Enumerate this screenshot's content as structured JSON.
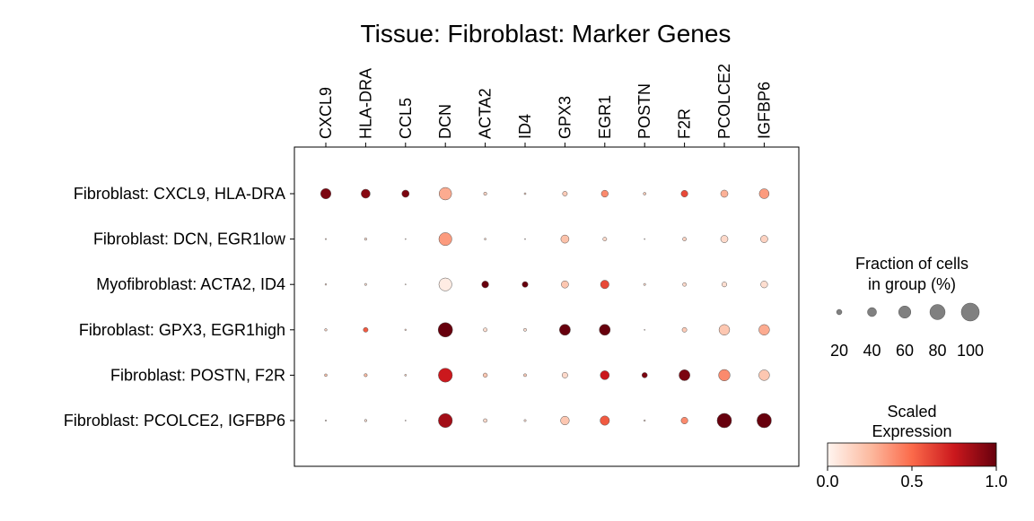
{
  "chart_data": {
    "type": "dotplot",
    "title": "Tissue: Fibroblast: Marker Genes",
    "genes": [
      "CXCL9",
      "HLA-DRA",
      "CCL5",
      "DCN",
      "ACTA2",
      "ID4",
      "GPX3",
      "EGR1",
      "POSTN",
      "F2R",
      "PCOLCE2",
      "IGFBP6"
    ],
    "groups": [
      "Fibroblast: CXCL9, HLA-DRA",
      "Fibroblast: DCN, EGR1low",
      "Myofibroblast: ACTA2, ID4",
      "Fibroblast: GPX3, EGR1high",
      "Fibroblast: POSTN, F2R",
      "Fibroblast: PCOLCE2, IGFBP6"
    ],
    "fraction_pct": [
      [
        48,
        40,
        30,
        62,
        10,
        5,
        17,
        28,
        8,
        27,
        30,
        45
      ],
      [
        3,
        7,
        1,
        65,
        5,
        2,
        35,
        13,
        2,
        12,
        30,
        30
      ],
      [
        4,
        6,
        2,
        65,
        28,
        22,
        30,
        37,
        6,
        12,
        18,
        28
      ],
      [
        7,
        17,
        4,
        75,
        13,
        9,
        52,
        52,
        2,
        17,
        50,
        50
      ],
      [
        8,
        10,
        5,
        72,
        15,
        9,
        22,
        40,
        20,
        52,
        55,
        50
      ],
      [
        3,
        7,
        2,
        72,
        12,
        6,
        38,
        42,
        4,
        27,
        75,
        75
      ]
    ],
    "scaled_expression": [
      [
        0.95,
        0.92,
        0.95,
        0.3,
        0.15,
        0.15,
        0.18,
        0.4,
        0.18,
        0.6,
        0.28,
        0.35
      ],
      [
        0.15,
        0.1,
        0.1,
        0.35,
        0.12,
        0.1,
        0.22,
        0.12,
        0.1,
        0.15,
        0.12,
        0.15
      ],
      [
        0.12,
        0.1,
        0.1,
        0.04,
        1.0,
        1.0,
        0.2,
        0.6,
        0.12,
        0.12,
        0.1,
        0.1
      ],
      [
        0.15,
        0.55,
        0.15,
        1.0,
        0.1,
        0.1,
        1.0,
        1.0,
        0.1,
        0.18,
        0.2,
        0.3
      ],
      [
        0.22,
        0.25,
        0.15,
        0.75,
        0.2,
        0.18,
        0.12,
        0.75,
        0.95,
        0.95,
        0.4,
        0.2
      ],
      [
        0.12,
        0.1,
        0.1,
        0.85,
        0.12,
        0.1,
        0.2,
        0.55,
        0.1,
        0.4,
        1.0,
        1.0
      ]
    ],
    "size_legend": {
      "title_line1": "Fraction of cells",
      "title_line2": "in group (%)",
      "values": [
        20,
        40,
        60,
        80,
        100
      ],
      "labels": [
        "20",
        "40",
        "60",
        "80",
        "100"
      ]
    },
    "color_legend": {
      "title_line1": "Scaled",
      "title_line2": "Expression",
      "ticks": [
        "0.0",
        "0.5",
        "1.0"
      ],
      "colormap": "Reds",
      "range": [
        0,
        1
      ]
    },
    "grid": false
  }
}
